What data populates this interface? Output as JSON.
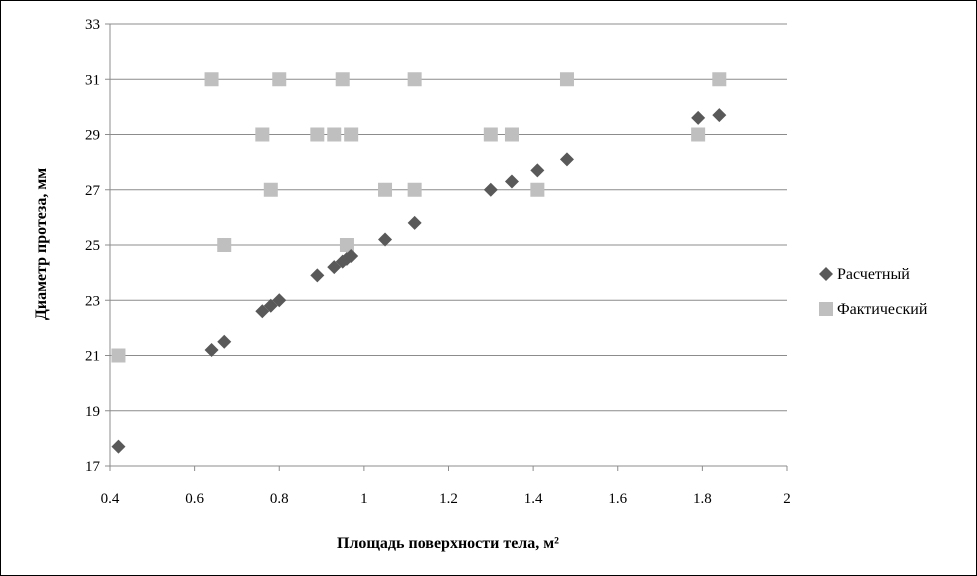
{
  "chart_data": {
    "type": "scatter",
    "title": "",
    "xlabel": "Площадь поверхности тела, м²",
    "ylabel": "Диаметр протеза, мм",
    "xlim": [
      0.4,
      2
    ],
    "ylim": [
      17,
      33
    ],
    "x_ticks": [
      "0.4",
      "0.6",
      "0.8",
      "1",
      "1.2",
      "1.4",
      "1.6",
      "1.8",
      "2"
    ],
    "y_ticks": [
      "17",
      "19",
      "21",
      "23",
      "25",
      "27",
      "29",
      "31",
      "33"
    ],
    "grid": "horizontal",
    "legend_position": "right",
    "series": [
      {
        "name": "Расчетный",
        "marker": "diamond",
        "color": "#595959",
        "points": [
          [
            0.42,
            17.7
          ],
          [
            0.64,
            21.2
          ],
          [
            0.67,
            21.5
          ],
          [
            0.76,
            22.6
          ],
          [
            0.78,
            22.8
          ],
          [
            0.8,
            23.0
          ],
          [
            0.89,
            23.9
          ],
          [
            0.93,
            24.2
          ],
          [
            0.95,
            24.4
          ],
          [
            0.96,
            24.5
          ],
          [
            0.97,
            24.6
          ],
          [
            1.05,
            25.2
          ],
          [
            1.12,
            25.8
          ],
          [
            1.3,
            27.0
          ],
          [
            1.35,
            27.3
          ],
          [
            1.41,
            27.7
          ],
          [
            1.48,
            28.1
          ],
          [
            1.79,
            29.6
          ],
          [
            1.84,
            29.7
          ]
        ]
      },
      {
        "name": "Фактический",
        "marker": "square",
        "color": "#bfbfbf",
        "points": [
          [
            0.42,
            21
          ],
          [
            0.64,
            31
          ],
          [
            0.67,
            25
          ],
          [
            0.76,
            29
          ],
          [
            0.78,
            27
          ],
          [
            0.8,
            31
          ],
          [
            0.89,
            29
          ],
          [
            0.93,
            29
          ],
          [
            0.95,
            31
          ],
          [
            0.96,
            25
          ],
          [
            0.97,
            29
          ],
          [
            1.05,
            27
          ],
          [
            1.12,
            31
          ],
          [
            1.12,
            27
          ],
          [
            1.3,
            29
          ],
          [
            1.35,
            29
          ],
          [
            1.41,
            27
          ],
          [
            1.48,
            31
          ],
          [
            1.79,
            29
          ],
          [
            1.84,
            31
          ]
        ]
      }
    ]
  }
}
